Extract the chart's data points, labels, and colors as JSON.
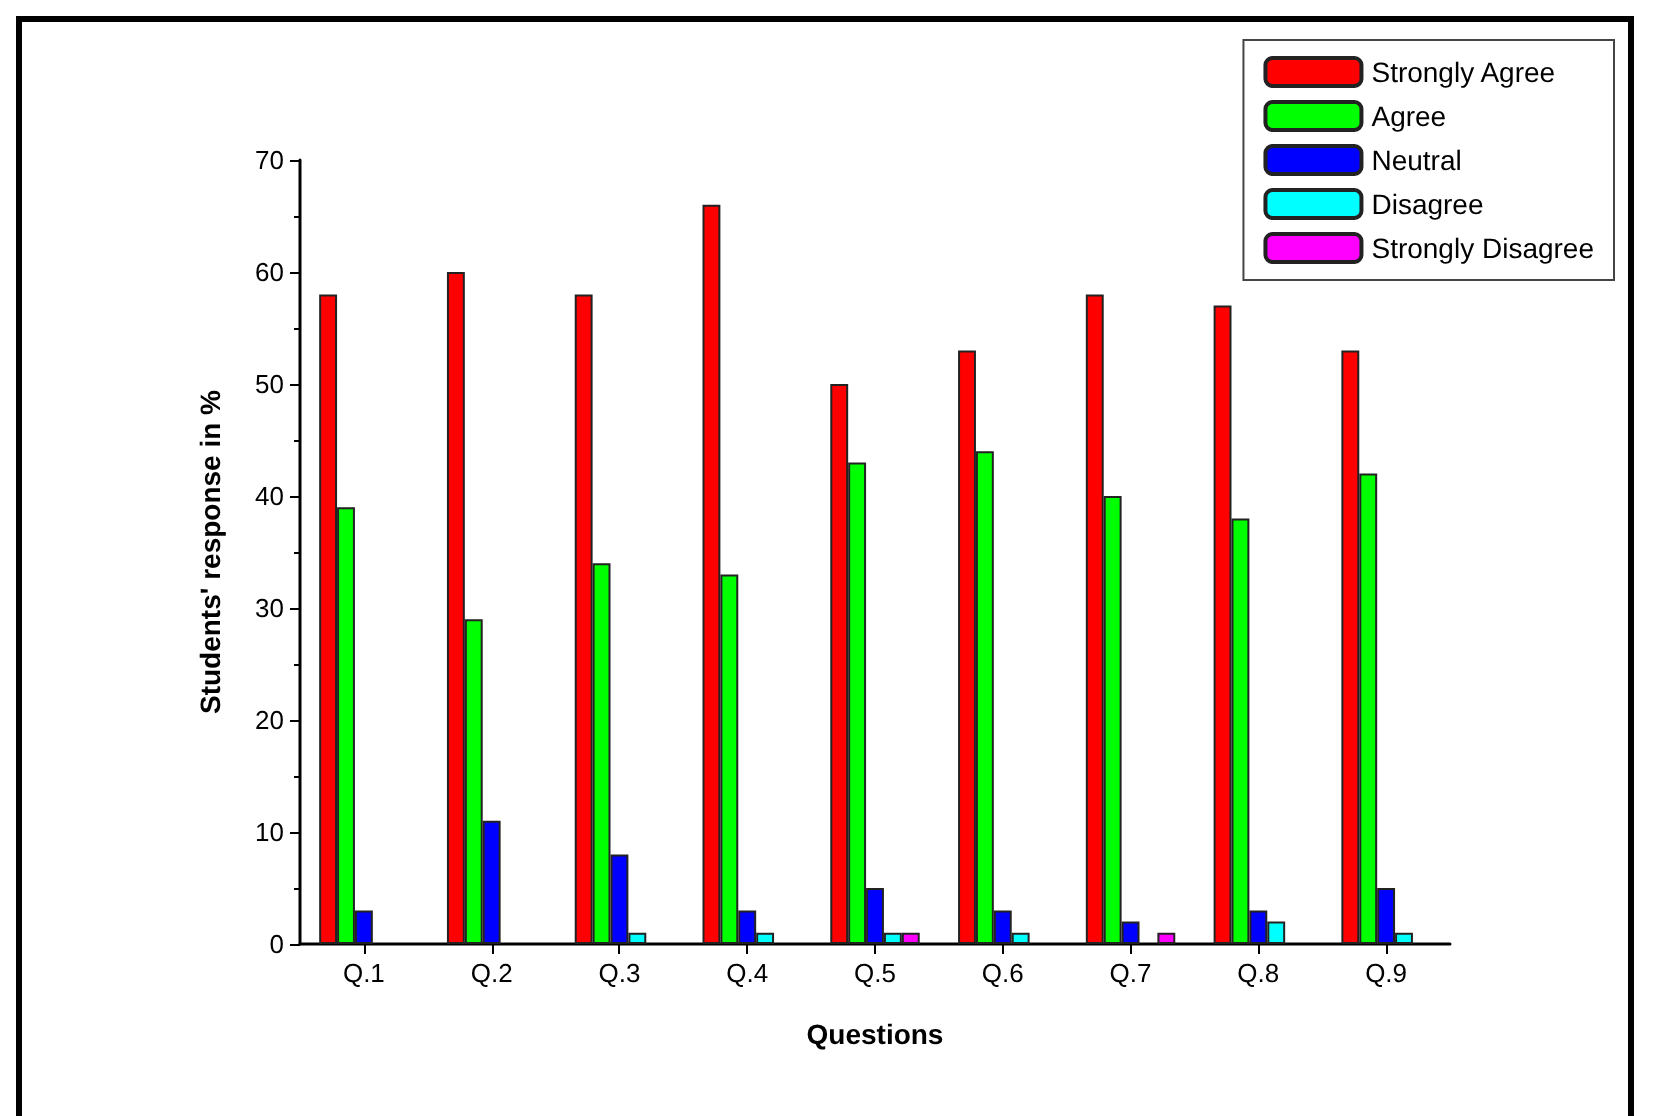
{
  "chart_data": {
    "type": "bar",
    "xlabel": "Questions",
    "ylabel": "Students' response in %",
    "categories": [
      "Q.1",
      "Q.2",
      "Q.3",
      "Q.4",
      "Q.5",
      "Q.6",
      "Q.7",
      "Q.8",
      "Q.9"
    ],
    "series": [
      {
        "name": "Strongly Agree",
        "color": "#ff0000",
        "values": [
          58,
          60,
          58,
          66,
          50,
          53,
          58,
          57,
          53
        ]
      },
      {
        "name": "Agree",
        "color": "#00ff00",
        "values": [
          39,
          29,
          34,
          33,
          43,
          44,
          40,
          38,
          42
        ]
      },
      {
        "name": "Neutral",
        "color": "#0000ff",
        "values": [
          3,
          11,
          8,
          3,
          5,
          3,
          2,
          3,
          5
        ]
      },
      {
        "name": "Disagree",
        "color": "#00ffff",
        "values": [
          null,
          null,
          1,
          1,
          1,
          1,
          null,
          2,
          1
        ]
      },
      {
        "name": "Strongly Disagree",
        "color": "#ff00ff",
        "values": [
          null,
          null,
          null,
          null,
          1,
          null,
          1,
          null,
          null
        ]
      }
    ],
    "ylim": [
      0,
      70
    ],
    "yticks": [
      0,
      10,
      20,
      30,
      40,
      50,
      60,
      70
    ],
    "grid": false,
    "legend": "top right"
  }
}
